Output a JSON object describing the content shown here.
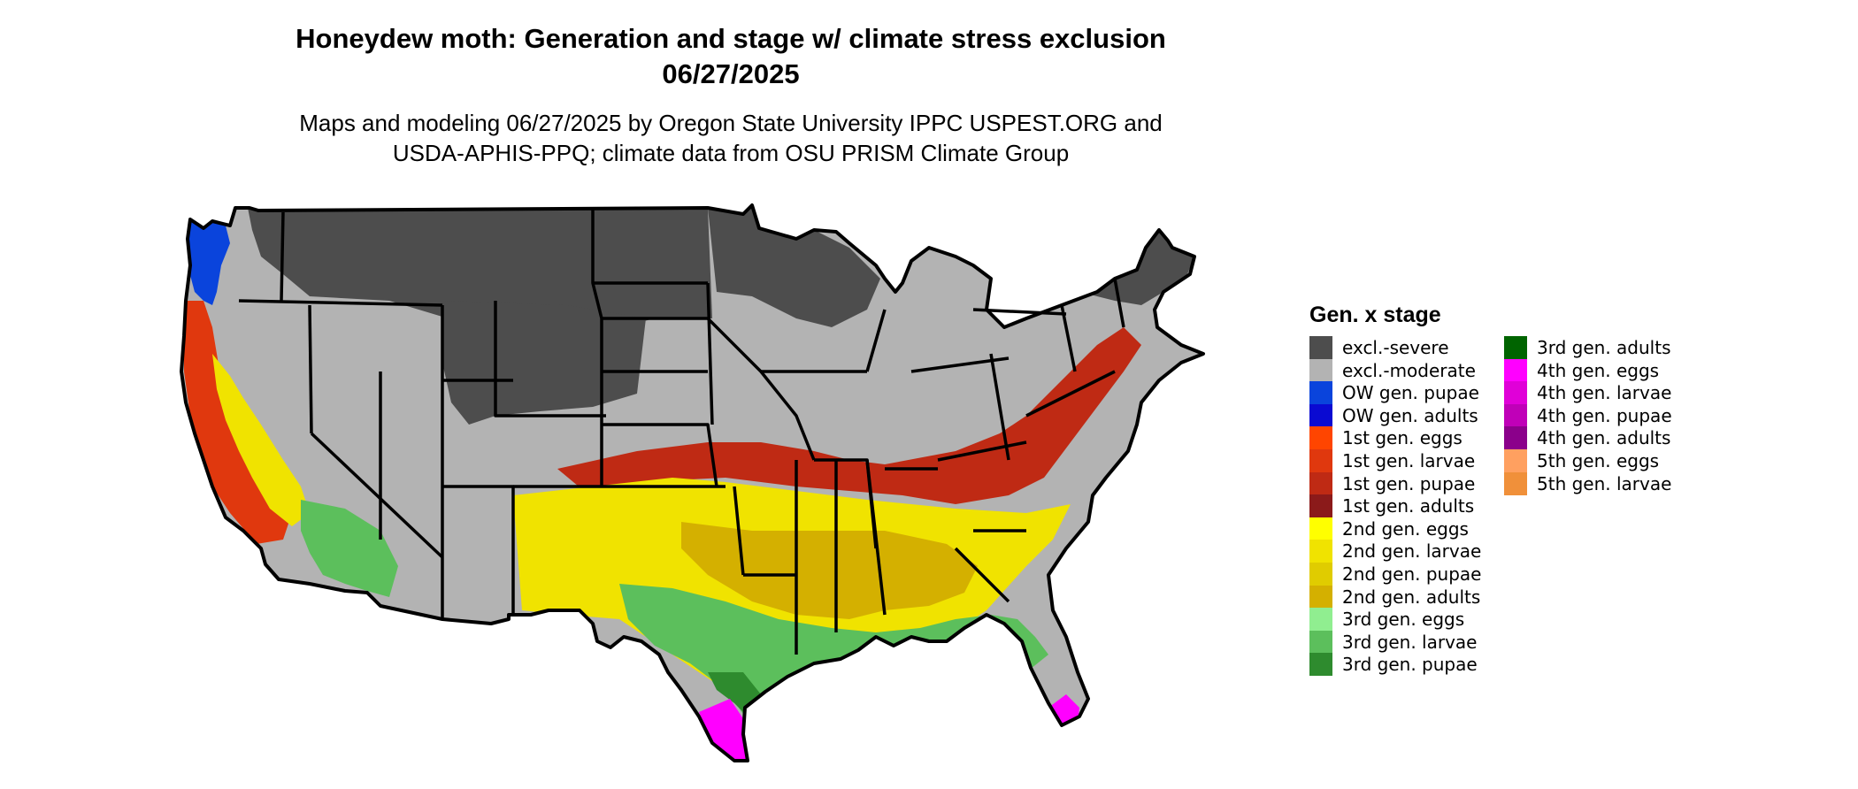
{
  "title_line1": "Honeydew moth: Generation and stage w/ climate stress exclusion",
  "title_line2": "06/27/2025",
  "subtitle_line1": "Maps and modeling 06/27/2025 by Oregon State University IPPC USPEST.ORG and",
  "subtitle_line2": "USDA-APHIS-PPQ; climate data from OSU PRISM Climate Group",
  "legend": {
    "title": "Gen. x stage",
    "column1": [
      {
        "label": "excl.-severe",
        "color": "#4d4d4d"
      },
      {
        "label": "excl.-moderate",
        "color": "#b3b3b3"
      },
      {
        "label": "OW gen. pupae",
        "color": "#0a44dc"
      },
      {
        "label": "OW gen. adults",
        "color": "#0a0ad2"
      },
      {
        "label": "1st gen. eggs",
        "color": "#ff4500"
      },
      {
        "label": "1st gen. larvae",
        "color": "#e0380e"
      },
      {
        "label": "1st gen. pupae",
        "color": "#bf2a14"
      },
      {
        "label": "1st gen. adults",
        "color": "#8b1a1a"
      },
      {
        "label": "2nd gen. eggs",
        "color": "#ffff00"
      },
      {
        "label": "2nd gen. larvae",
        "color": "#f0e300"
      },
      {
        "label": "2nd gen. pupae",
        "color": "#e0cc00"
      },
      {
        "label": "2nd gen. adults",
        "color": "#d4b000"
      },
      {
        "label": "3rd gen. eggs",
        "color": "#90ee90"
      },
      {
        "label": "3rd gen. larvae",
        "color": "#5cbf5c"
      },
      {
        "label": "3rd gen. pupae",
        "color": "#2e8b2e"
      }
    ],
    "column2": [
      {
        "label": "3rd gen. adults",
        "color": "#006400"
      },
      {
        "label": "4th gen. eggs",
        "color": "#ff00ff"
      },
      {
        "label": "4th gen. larvae",
        "color": "#e000d8"
      },
      {
        "label": "4th gen. pupae",
        "color": "#c000b8"
      },
      {
        "label": "4th gen. adults",
        "color": "#8b008b"
      },
      {
        "label": "5th gen. eggs",
        "color": "#ffa060"
      },
      {
        "label": "5th gen. larvae",
        "color": "#f0903a"
      }
    ]
  },
  "map": {
    "region": "Contiguous United States",
    "layers": [
      {
        "name": "excl-moderate-base",
        "color": "#b3b3b3"
      },
      {
        "name": "excl-severe-northern-plains",
        "color": "#4d4d4d"
      },
      {
        "name": "excl-severe-upper-midwest",
        "color": "#4d4d4d"
      },
      {
        "name": "excl-severe-rockies",
        "color": "#4d4d4d"
      },
      {
        "name": "excl-severe-northeast",
        "color": "#4d4d4d"
      },
      {
        "name": "1st-gen-belt",
        "color": "#bf2a14"
      },
      {
        "name": "2nd-gen-south",
        "color": "#f0e300"
      },
      {
        "name": "2nd-gen-south-deep",
        "color": "#d4b000"
      },
      {
        "name": "3rd-gen-gulf",
        "color": "#5cbf5c"
      },
      {
        "name": "3rd-gen-gulf-pupae",
        "color": "#2e8b2e"
      },
      {
        "name": "4th-gen-south-texas",
        "color": "#ff00ff"
      },
      {
        "name": "4th-gen-south-florida",
        "color": "#ff00ff"
      },
      {
        "name": "ow-pacific-northwest",
        "color": "#0a44dc"
      },
      {
        "name": "1st-gen-west-coast",
        "color": "#e0380e"
      },
      {
        "name": "2nd-gen-california",
        "color": "#f0e300"
      },
      {
        "name": "3rd-gen-arizona",
        "color": "#5cbf5c"
      }
    ]
  }
}
